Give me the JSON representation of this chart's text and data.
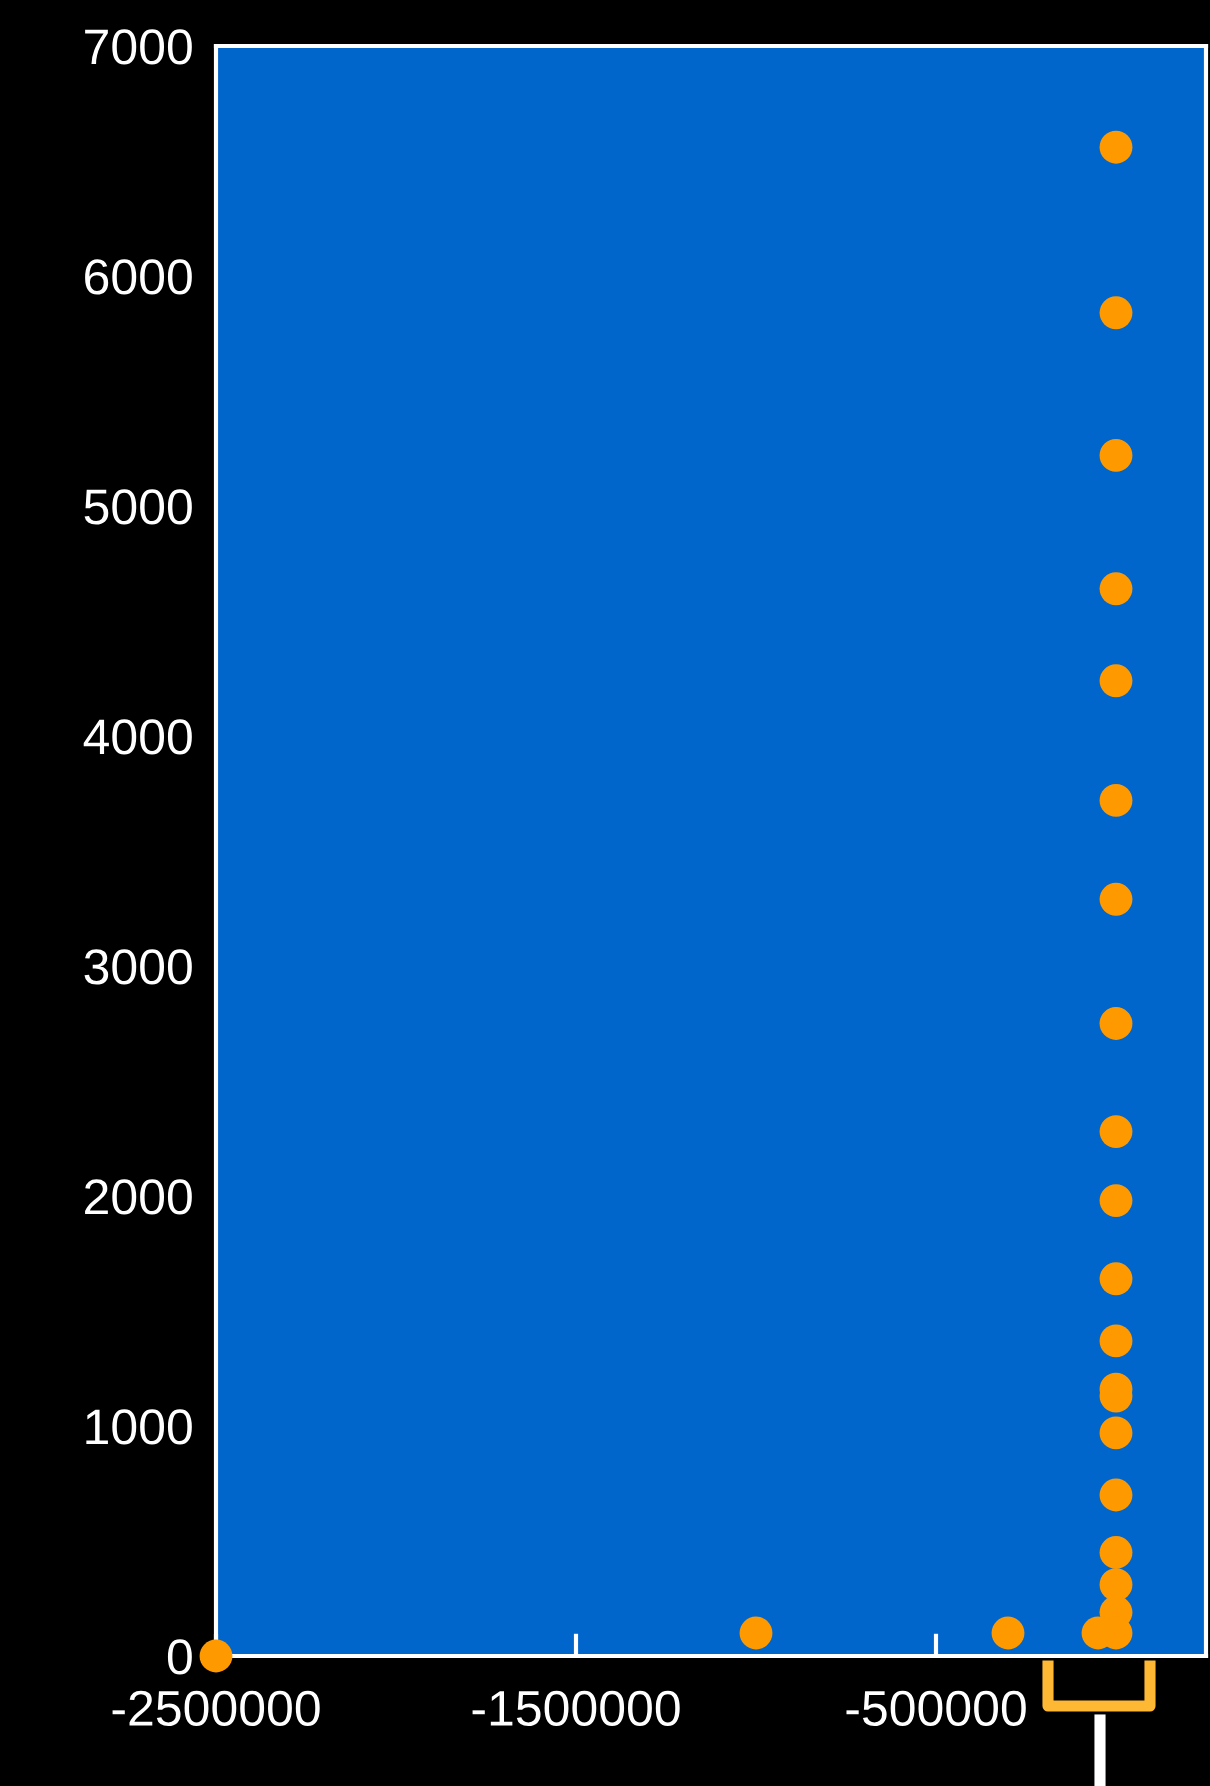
{
  "chart_data": {
    "type": "scatter",
    "series": [
      {
        "color": "#ff9900",
        "x": [
          0,
          0,
          0,
          0,
          0,
          0,
          0,
          0,
          0,
          0,
          0,
          0,
          0,
          0,
          0,
          0,
          0,
          0,
          0,
          0,
          -50000,
          -1000000,
          -300000,
          -2500000
        ],
        "values": [
          6560,
          5840,
          5220,
          4640,
          4240,
          3720,
          3290,
          2750,
          2280,
          1980,
          1640,
          1370,
          1160,
          1130,
          970,
          700,
          450,
          310,
          190,
          100,
          100,
          100,
          100,
          0
        ]
      }
    ],
    "xlim": [
      -2500000,
      250000
    ],
    "xticks": [
      -2500000,
      -1500000,
      -500000
    ],
    "ylim": [
      0,
      7000
    ],
    "yticks": [
      0,
      1000,
      2000,
      3000,
      4000,
      5000,
      6000,
      7000
    ],
    "marker": "circle",
    "grid": false,
    "legend": false
  }
}
